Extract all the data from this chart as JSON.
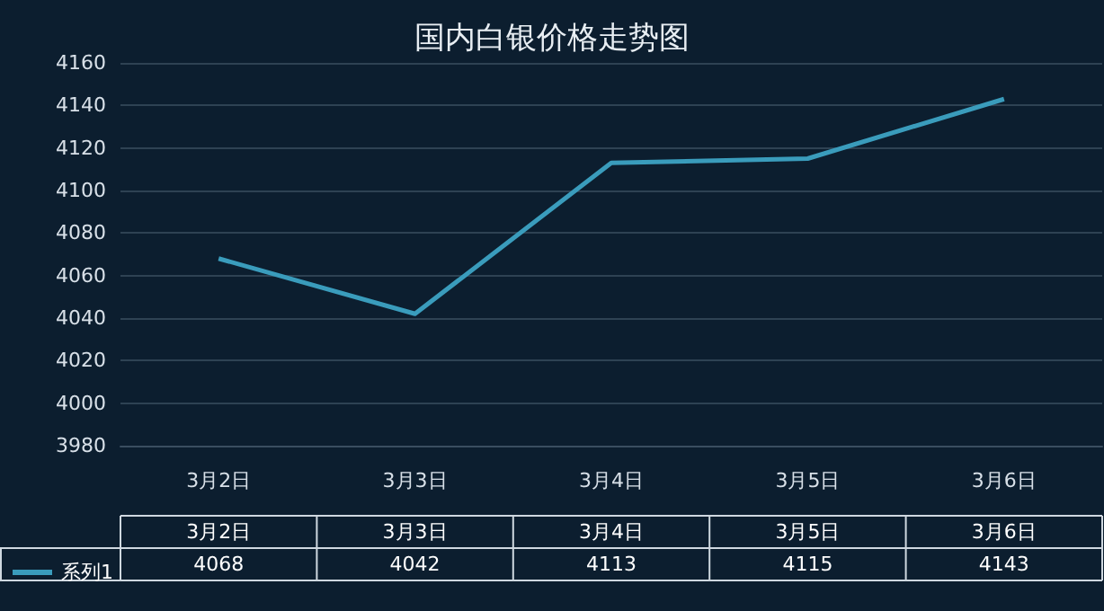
{
  "chart_data": {
    "type": "line",
    "title": "国内白银价格走势图",
    "categories": [
      "3月2日",
      "3月3日",
      "3月4日",
      "3月5日",
      "3月6日"
    ],
    "series": [
      {
        "name": "系列1",
        "color": "#3a9cbc",
        "values": [
          4068,
          4042,
          4113,
          4115,
          4143
        ]
      }
    ],
    "ylim": [
      3980,
      4160
    ],
    "yticks": [
      3980,
      4000,
      4020,
      4040,
      4060,
      4080,
      4100,
      4120,
      4140,
      4160
    ],
    "grid": "y",
    "legend": "bottom",
    "data_labels": true
  }
}
